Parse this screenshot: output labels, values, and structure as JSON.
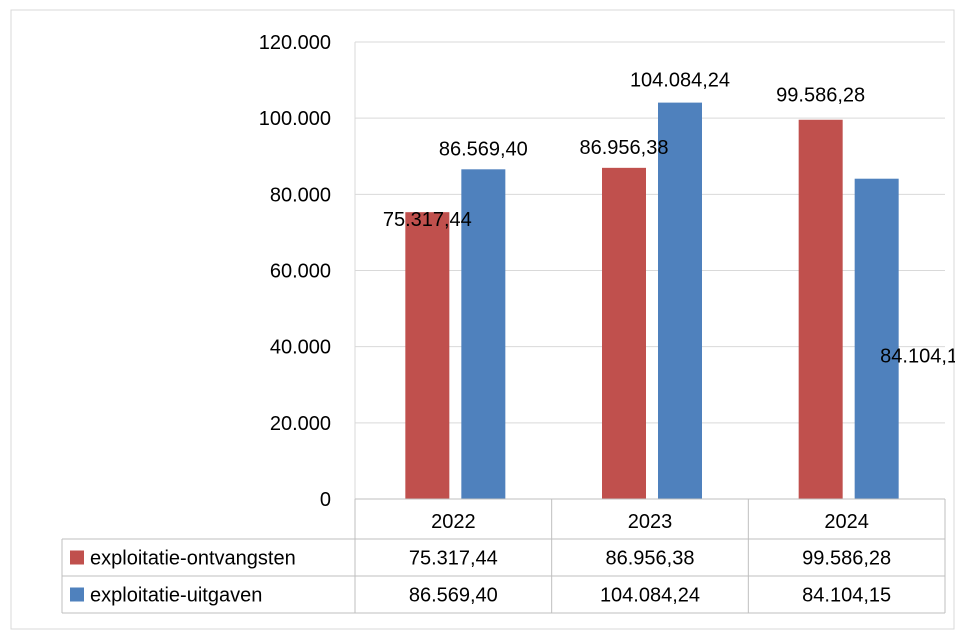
{
  "chart_data": {
    "type": "bar",
    "title": "",
    "xlabel": "",
    "ylabel": "",
    "categories": [
      "2022",
      "2023",
      "2024"
    ],
    "ylim": [
      0,
      120000
    ],
    "yticks": [
      0,
      20000,
      40000,
      60000,
      80000,
      100000,
      120000
    ],
    "ytick_labels": [
      "0",
      "20.000",
      "40.000",
      "60.000",
      "80.000",
      "100.000",
      "120.000"
    ],
    "grid": true,
    "legend_placement": "data-table",
    "series": [
      {
        "name": "exploitatie-ontvangsten",
        "color": "#c0504d",
        "values": [
          75317.44,
          86956.38,
          99586.28
        ],
        "labels": [
          "75.317,44",
          "86.956,38",
          "99.586,28"
        ]
      },
      {
        "name": "exploitatie-uitgaven",
        "color": "#4f81bd",
        "values": [
          86569.4,
          104084.24,
          84104.15
        ],
        "labels": [
          "86.569,40",
          "104.084,24",
          "84.104,15"
        ]
      }
    ]
  }
}
